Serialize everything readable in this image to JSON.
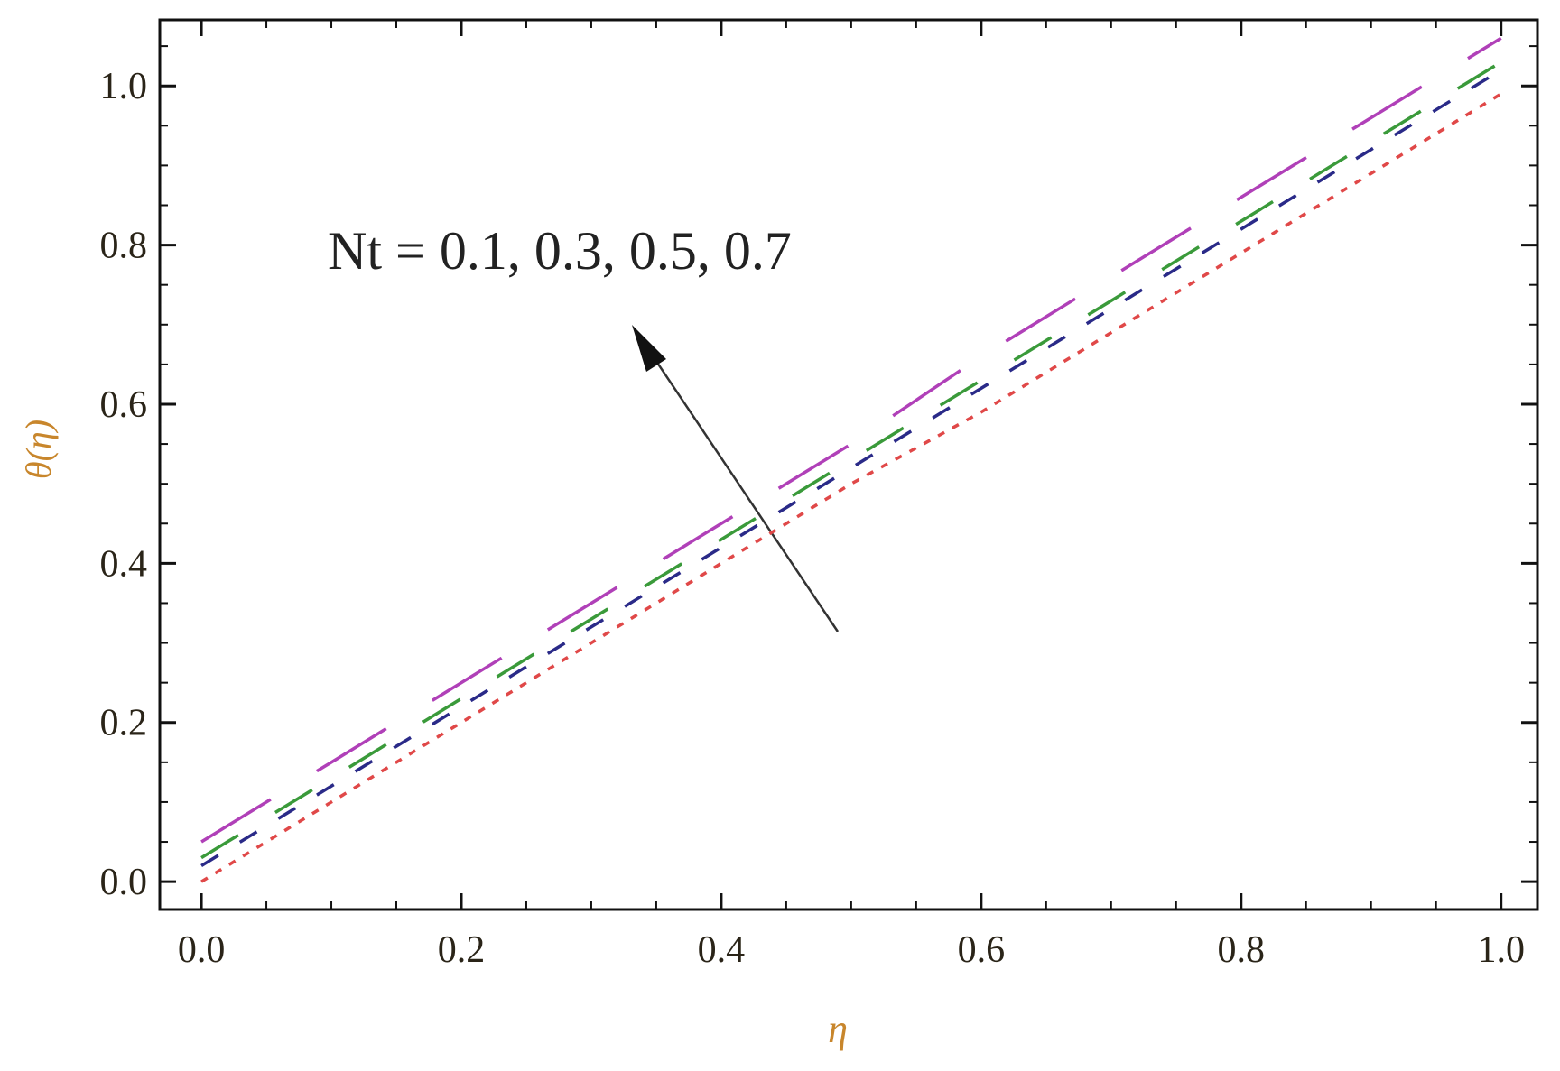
{
  "chart_data": {
    "type": "line",
    "annotation": "Nt = 0.1, 0.3, 0.5, 0.7",
    "xlabel": "η",
    "ylabel": "θ(η)",
    "x": [
      0,
      0.1,
      0.2,
      0.3,
      0.4,
      0.5,
      0.6,
      0.7,
      0.8,
      0.9,
      1.0
    ],
    "series": [
      {
        "name": "Nt = 0.1",
        "color": "#e04848",
        "values": [
          0,
          0.1,
          0.2,
          0.3,
          0.4,
          0.5,
          0.59,
          0.69,
          0.79,
          0.89,
          0.99
        ]
      },
      {
        "name": "Nt = 0.3",
        "color": "#2a2a88",
        "values": [
          0.02,
          0.12,
          0.22,
          0.32,
          0.42,
          0.52,
          0.62,
          0.72,
          0.82,
          0.92,
          1.02
        ]
      },
      {
        "name": "Nt = 0.5",
        "color": "#3a9a3a",
        "values": [
          0.03,
          0.13,
          0.23,
          0.33,
          0.43,
          0.53,
          0.63,
          0.73,
          0.83,
          0.93,
          1.03
        ]
      },
      {
        "name": "Nt = 0.7",
        "color": "#b040b8",
        "values": [
          0.05,
          0.15,
          0.25,
          0.35,
          0.45,
          0.55,
          0.66,
          0.76,
          0.86,
          0.96,
          1.06
        ]
      }
    ],
    "xlim": [
      -0.032,
      1.028
    ],
    "ylim": [
      -0.035,
      1.083
    ],
    "xticks": [
      {
        "value": 0,
        "label": "0.0"
      },
      0.2,
      0.4,
      0.6,
      0.8,
      {
        "value": 1,
        "label": "1.0"
      }
    ],
    "yticks": [
      {
        "value": 0,
        "label": "0.0"
      },
      0.2,
      0.4,
      0.6,
      0.8,
      {
        "value": 1,
        "label": "1.0"
      }
    ],
    "xminorticks": [
      0.05,
      0.1,
      0.15,
      0.25,
      0.3,
      0.35,
      0.45,
      0.5,
      0.55,
      0.65,
      0.7,
      0.75,
      0.85,
      0.9,
      0.95
    ],
    "yminorticks": [
      0.05,
      0.1,
      0.15,
      0.25,
      0.3,
      0.35,
      0.45,
      0.5,
      0.55,
      0.65,
      0.7,
      0.75,
      0.85,
      0.9,
      0.95,
      1.05
    ]
  }
}
